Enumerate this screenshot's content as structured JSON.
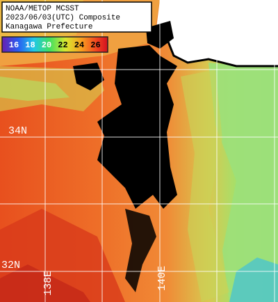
{
  "map": {
    "title_lines": [
      "NOAA/METOP MCSST",
      "2023/06/03(UTC) Composite",
      "Kanagawa Prefecture"
    ],
    "colorbar_ticks": [
      16,
      18,
      20,
      22,
      24,
      26
    ],
    "lat_labels": [
      "34N",
      "32N"
    ],
    "lon_labels": [
      "138E",
      "140E"
    ]
  }
}
